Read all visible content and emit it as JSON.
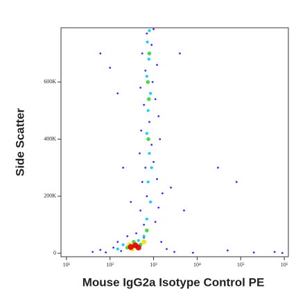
{
  "chart_data": {
    "type": "scatter",
    "xlabel": "Mouse IgG2a Isotype Control PE",
    "ylabel": "Side Scatter",
    "xscale": "log",
    "xlim": [
      7.5,
      1240000
    ],
    "xticks": [
      {
        "value": 10,
        "label": "10¹"
      },
      {
        "value": 100,
        "label": "10²"
      },
      {
        "value": 1000,
        "label": "10³"
      },
      {
        "value": 10000,
        "label": "10⁴"
      },
      {
        "value": 100000,
        "label": "10⁵"
      },
      {
        "value": 1000000,
        "label": "10⁶"
      }
    ],
    "ylim": [
      -12000,
      790000
    ],
    "yticks": [
      0,
      {
        "value": 200000,
        "label": "200K"
      },
      {
        "value": 400000,
        "label": "400K"
      },
      {
        "value": 600000,
        "label": "600K"
      }
    ],
    "series": [
      {
        "color": "#1a1aff",
        "x": [
          40,
          60,
          80,
          120,
          150,
          180,
          250,
          400,
          600,
          1500,
          2000,
          3000,
          8000,
          50000,
          200000,
          600000,
          900000,
          600,
          1100,
          500,
          1300,
          700,
          1600,
          550,
          1200,
          2500,
          650,
          1000,
          480,
          900,
          1400,
          520,
          800,
          1300,
          600,
          1100,
          500,
          950,
          650,
          1200,
          550,
          900,
          700,
          1000,
          60,
          100,
          150,
          4000,
          80000,
          30000,
          5000,
          200,
          300
        ],
        "values": [
          5000,
          12000,
          3000,
          20000,
          40000,
          8000,
          60000,
          70000,
          55000,
          40000,
          15000,
          5000,
          2000,
          10000,
          3000,
          5000,
          1000,
          100000,
          110000,
          150000,
          160000,
          200000,
          210000,
          250000,
          260000,
          230000,
          300000,
          320000,
          350000,
          380000,
          400000,
          430000,
          460000,
          480000,
          520000,
          540000,
          580000,
          600000,
          640000,
          660000,
          700000,
          730000,
          770000,
          785000,
          700000,
          650000,
          560000,
          700000,
          250000,
          300000,
          150000,
          300000,
          180000
        ]
      },
      {
        "color": "#00c8ff",
        "x": [
          700,
          850,
          750,
          900,
          800,
          700,
          750,
          850,
          700,
          780,
          720,
          800,
          600,
          200,
          450,
          150
        ],
        "values": [
          120000,
          180000,
          250000,
          300000,
          350000,
          420000,
          500000,
          560000,
          620000,
          680000,
          740000,
          780000,
          60000,
          30000,
          45000,
          15000
        ]
      },
      {
        "color": "#3cd23c",
        "x": [
          760,
          780,
          740,
          800,
          700,
          350,
          250,
          500
        ],
        "values": [
          400000,
          540000,
          600000,
          700000,
          80000,
          40000,
          20000,
          30000
        ]
      },
      {
        "color": "#f0e000",
        "x": [
          280,
          400,
          600,
          320
        ],
        "values": [
          30000,
          25000,
          40000,
          15000
        ]
      },
      {
        "color": "#e00000",
        "x": [
          300,
          380,
          450
        ],
        "values": [
          22000,
          28000,
          20000
        ]
      }
    ]
  }
}
